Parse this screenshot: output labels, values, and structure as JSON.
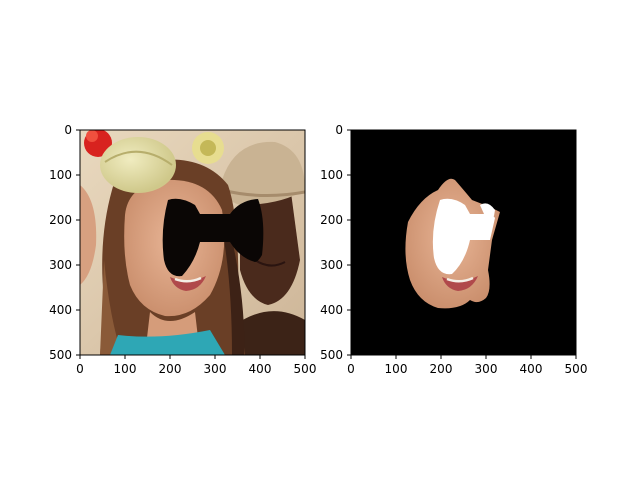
{
  "figure": {
    "panels": [
      {
        "id": "left",
        "content": "photo-with-black-mask",
        "x_ticks": [
          "0",
          "100",
          "200",
          "300",
          "400",
          "500"
        ],
        "y_ticks": [
          "0",
          "100",
          "200",
          "300",
          "400",
          "500"
        ]
      },
      {
        "id": "right",
        "content": "segmented-face-on-black",
        "x_ticks": [
          "0",
          "100",
          "200",
          "300",
          "400",
          "500"
        ],
        "y_ticks": [
          "0",
          "100",
          "200",
          "300",
          "400",
          "500"
        ]
      }
    ]
  },
  "colors": {
    "mask": "#0a0605",
    "background_right": "#000000",
    "skin": "#d9a486",
    "hair": "#5a3522",
    "axis": "#000000"
  }
}
